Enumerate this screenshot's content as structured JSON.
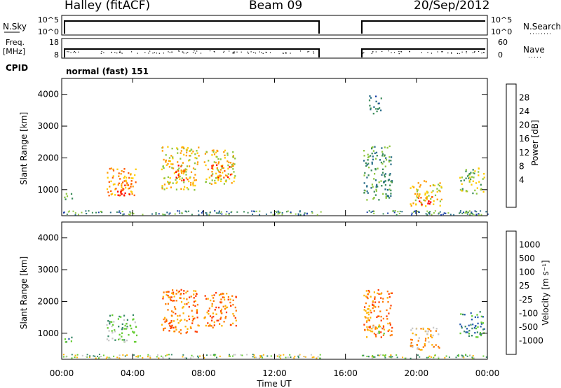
{
  "header": {
    "station": "Halley (fitACF)",
    "beam": "Beam 09",
    "date": "20/Sep/2012"
  },
  "status_panels": {
    "nsky_label": "N.Sky",
    "nsky_ticks": [
      "10^5",
      "10^0"
    ],
    "nsearch_label": "N.Search",
    "nsearch_ticks": [
      "10^5",
      "10^0"
    ],
    "freq_label": "Freq.",
    "freq_unit": "[MHz]",
    "freq_ticks": [
      "18",
      "8"
    ],
    "nave_label": "Nave",
    "nave_ticks": [
      "60",
      "0"
    ],
    "cpid_label": "CPID",
    "cpid_value": "normal (fast) 151"
  },
  "chart_data": [
    {
      "type": "heatmap",
      "title": "",
      "xlabel": "Time UT",
      "ylabel": "Slant Range [km]",
      "xlim_hours": [
        0,
        24
      ],
      "ylim_km": [
        180,
        4500
      ],
      "yticks": [
        "4000",
        "3000",
        "2000",
        "1000"
      ],
      "ytick_values": [
        4000,
        3000,
        2000,
        1000
      ],
      "xticks": [
        "00:00",
        "04:00",
        "08:00",
        "12:00",
        "16:00",
        "20:00",
        "00:00"
      ],
      "data_gap_hours": [
        14.6,
        16.9
      ],
      "colorbar": {
        "label": "Power [dB]",
        "ticks": [
          "28",
          "24",
          "20",
          "16",
          "12",
          "8",
          "4"
        ],
        "colors": [
          "#0000ff",
          "#1a3fa6",
          "#2a6e8a",
          "#3b8c5a",
          "#8ec63f",
          "#ffcc00",
          "#ff9a00",
          "#ff5a00",
          "#ff0000"
        ]
      },
      "echo_regions": [
        {
          "t0": 0.1,
          "t1": 0.6,
          "r0": 700,
          "r1": 950,
          "level": 4
        },
        {
          "t0": 2.5,
          "t1": 4.2,
          "r0": 800,
          "r1": 1700,
          "level": 6
        },
        {
          "t0": 3.0,
          "t1": 3.9,
          "r0": 850,
          "r1": 1200,
          "level": 8
        },
        {
          "t0": 5.6,
          "t1": 7.7,
          "r0": 1000,
          "r1": 2400,
          "level": 5
        },
        {
          "t0": 6.4,
          "t1": 7.1,
          "r0": 1300,
          "r1": 1800,
          "level": 7
        },
        {
          "t0": 8.0,
          "t1": 9.8,
          "r0": 1200,
          "r1": 2300,
          "level": 5
        },
        {
          "t0": 8.4,
          "t1": 9.5,
          "r0": 1400,
          "r1": 1800,
          "level": 7
        },
        {
          "t0": 17.0,
          "t1": 18.6,
          "r0": 700,
          "r1": 2400,
          "level": 3
        },
        {
          "t0": 17.3,
          "t1": 18.0,
          "r0": 3400,
          "r1": 4000,
          "level": 2
        },
        {
          "t0": 19.6,
          "t1": 21.4,
          "r0": 500,
          "r1": 1300,
          "level": 5
        },
        {
          "t0": 20.0,
          "t1": 21.0,
          "r0": 550,
          "r1": 800,
          "level": 8
        },
        {
          "t0": 22.4,
          "t1": 23.8,
          "r0": 900,
          "r1": 1700,
          "level": 4
        }
      ]
    },
    {
      "type": "heatmap",
      "title": "",
      "xlabel": "Time UT",
      "ylabel": "Slant Range [km]",
      "xlim_hours": [
        0,
        24
      ],
      "ylim_km": [
        180,
        4500
      ],
      "yticks": [
        "4000",
        "3000",
        "2000",
        "1000"
      ],
      "ytick_values": [
        4000,
        3000,
        2000,
        1000
      ],
      "xticks": [
        "00:00",
        "04:00",
        "08:00",
        "12:00",
        "16:00",
        "20:00",
        "00:00"
      ],
      "data_gap_hours": [
        14.6,
        16.9
      ],
      "colorbar": {
        "label": "Velocity [m s⁻¹]",
        "ticks": [
          "1000",
          "500",
          "100",
          "25",
          "-25",
          "-100",
          "-500",
          "-1000"
        ],
        "colors": [
          "#1a2ad0",
          "#2a5eb0",
          "#3a8a6a",
          "#66cc33",
          "#c8c8c8",
          "#ffb300",
          "#ff7a00",
          "#ff3c00",
          "#ff0000"
        ]
      },
      "echo_regions": [
        {
          "t0": 0.1,
          "t1": 0.6,
          "r0": 700,
          "r1": 950,
          "level": 2
        },
        {
          "t0": 2.5,
          "t1": 4.2,
          "r0": 750,
          "r1": 1600,
          "level": 3
        },
        {
          "t0": 5.6,
          "t1": 7.7,
          "r0": 1000,
          "r1": 2400,
          "level": 6
        },
        {
          "t0": 8.0,
          "t1": 9.8,
          "r0": 1200,
          "r1": 2300,
          "level": 6
        },
        {
          "t0": 17.0,
          "t1": 18.6,
          "r0": 900,
          "r1": 2400,
          "level": 6
        },
        {
          "t0": 17.2,
          "t1": 18.2,
          "r0": 1000,
          "r1": 1300,
          "level": 4
        },
        {
          "t0": 19.6,
          "t1": 21.4,
          "r0": 500,
          "r1": 1200,
          "level": 5
        },
        {
          "t0": 22.4,
          "t1": 23.8,
          "r0": 900,
          "r1": 1700,
          "level": 2
        }
      ]
    }
  ]
}
